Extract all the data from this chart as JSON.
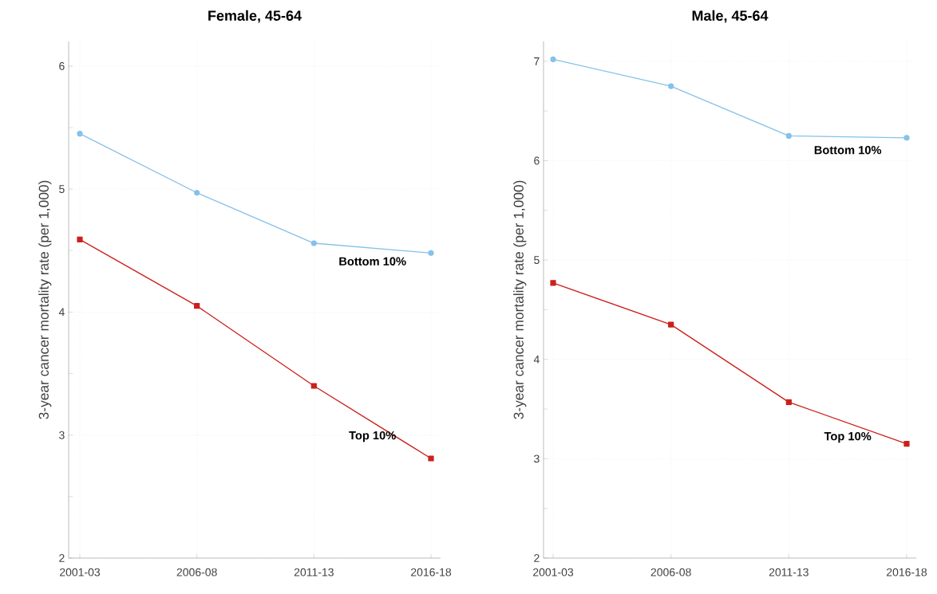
{
  "chart_data": [
    {
      "type": "line",
      "title": "Female, 45-64",
      "ylabel": "3-year cancer mortality rate (per 1,000)",
      "categories": [
        "2001-03",
        "2006-08",
        "2011-13",
        "2016-18"
      ],
      "ylim": [
        2,
        6.2
      ],
      "yticks": [
        2,
        {
          "value": 2.5,
          "label": null
        },
        3,
        {
          "value": 3.5,
          "label": null
        },
        4,
        {
          "value": 4.5,
          "label": null
        },
        5,
        {
          "value": 5.5,
          "label": null
        },
        6
      ],
      "grid": true,
      "series": [
        {
          "name": "Bottom 10%",
          "color": "#85c1e9",
          "marker": "circle",
          "values": [
            5.45,
            4.97,
            4.56,
            4.48
          ]
        },
        {
          "name": "Top 10%",
          "color": "#cc1f1a",
          "marker": "square",
          "values": [
            4.59,
            4.05,
            3.4,
            2.81
          ]
        }
      ]
    },
    {
      "type": "line",
      "title": "Male, 45-64",
      "ylabel": "3-year cancer mortality rate (per 1,000)",
      "categories": [
        "2001-03",
        "2006-08",
        "2011-13",
        "2016-18"
      ],
      "ylim": [
        2,
        7.2
      ],
      "yticks": [
        2,
        {
          "value": 2.5,
          "label": null
        },
        3,
        {
          "value": 3.5,
          "label": null
        },
        4,
        {
          "value": 4.5,
          "label": null
        },
        5,
        {
          "value": 5.5,
          "label": null
        },
        6,
        {
          "value": 6.5,
          "label": null
        },
        7
      ],
      "grid": true,
      "series": [
        {
          "name": "Bottom 10%",
          "color": "#85c1e9",
          "marker": "circle",
          "values": [
            7.02,
            6.75,
            6.25,
            6.23
          ]
        },
        {
          "name": "Top 10%",
          "color": "#cc1f1a",
          "marker": "square",
          "values": [
            4.77,
            4.35,
            3.57,
            3.15
          ]
        }
      ]
    }
  ]
}
